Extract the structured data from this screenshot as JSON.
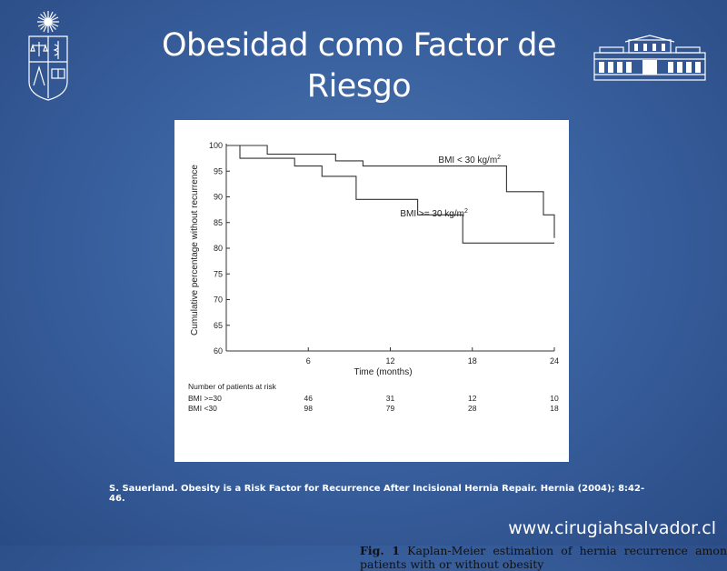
{
  "slide": {
    "title": "Obesidad como Factor de Riesgo",
    "citation": "S. Sauerland. Obesity is a Risk Factor for Recurrence After Incisional Hernia Repair. Hernia (2004); 8:42-46.",
    "website": "www.cirugiahsalvador.cl"
  },
  "figure": {
    "caption_label": "Fig. 1",
    "caption_text": "Kaplan-Meier estimation of hernia recurrence among patients with or without obesity"
  },
  "colors": {
    "background": "#3a62a0",
    "text": "#ffffff",
    "curve": "#333333"
  },
  "chart_data": {
    "type": "line",
    "subtype": "kaplan-meier-step",
    "xlabel": "Time (months)",
    "ylabel": "Cumulative percentage without recurrence",
    "xlim": [
      0,
      24
    ],
    "ylim": [
      60,
      100
    ],
    "x_ticks": [
      6,
      12,
      18,
      24
    ],
    "y_ticks": [
      60,
      65,
      70,
      75,
      80,
      85,
      90,
      95,
      100
    ],
    "grid": false,
    "series": [
      {
        "name": "BMI < 30 kg/m²",
        "label_main": "BMI < 30 kg/m",
        "label_sup": "2",
        "x": [
          0,
          3,
          3,
          8,
          8,
          10,
          10,
          20.5,
          20.5,
          23.2,
          23.2,
          24,
          24
        ],
        "y": [
          100,
          100,
          98.3,
          98.3,
          97,
          97,
          96,
          96,
          91,
          91,
          86.5,
          86.5,
          82
        ]
      },
      {
        "name": "BMI >= 30 kg/m²",
        "label_main": "BMI >= 30 kg/m",
        "label_sup": "2",
        "x": [
          0,
          1,
          1,
          5,
          5,
          7,
          7,
          9.5,
          9.5,
          14,
          14,
          17.3,
          17.3,
          24
        ],
        "y": [
          100,
          100,
          97.5,
          97.5,
          96,
          96,
          94,
          94,
          89.5,
          89.5,
          86.5,
          86.5,
          81,
          81
        ]
      }
    ],
    "risk_table": {
      "header": "Number of patients at risk",
      "timepoints": [
        6,
        12,
        18,
        24
      ],
      "rows": [
        {
          "label": "BMI >=30",
          "values": [
            "46",
            "31",
            "12",
            "10"
          ]
        },
        {
          "label": "BMI <30",
          "values": [
            "98",
            "79",
            "28",
            "18"
          ]
        }
      ]
    }
  }
}
